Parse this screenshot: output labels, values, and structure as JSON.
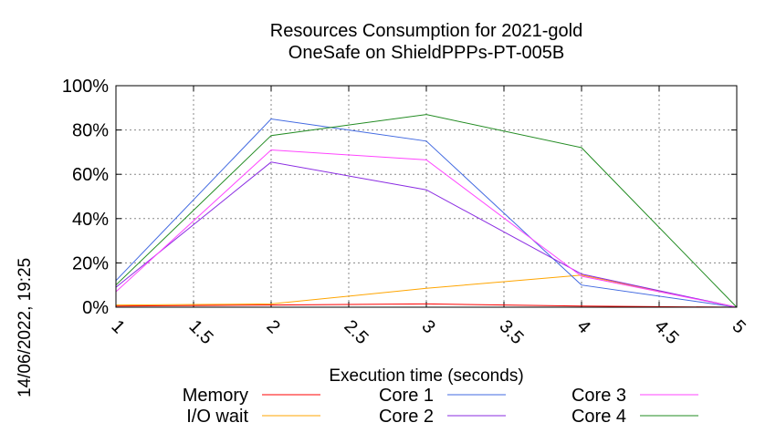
{
  "chart_data": {
    "type": "line",
    "title": [
      "Resources Consumption for 2021-gold",
      "OneSafe on ShieldPPPs-PT-005B"
    ],
    "xlabel": "Execution time (seconds)",
    "ylabel": "",
    "x_ticks": [
      "1",
      "1.5",
      "2",
      "2.5",
      "3",
      "3.5",
      "4",
      "4.5",
      "5"
    ],
    "y_ticks": [
      "0%",
      "20%",
      "40%",
      "60%",
      "80%",
      "100%"
    ],
    "xlim": [
      1,
      5
    ],
    "ylim": [
      0,
      100
    ],
    "grid": true,
    "legend_position": "bottom",
    "x": [
      1,
      2,
      3,
      4,
      5
    ],
    "series": [
      {
        "name": "Memory",
        "color": "#ff0000",
        "values": [
          0.5,
          1,
          1.5,
          0.5,
          0
        ]
      },
      {
        "name": "I/O wait",
        "color": "#ffa500",
        "values": [
          1,
          1.5,
          8.5,
          14.5,
          0
        ]
      },
      {
        "name": "Core 1",
        "color": "#4169e1",
        "values": [
          12,
          85,
          75,
          10,
          0
        ]
      },
      {
        "name": "Core 2",
        "color": "#8a2be2",
        "values": [
          9,
          65.5,
          53,
          15,
          0
        ]
      },
      {
        "name": "Core 3",
        "color": "#ff44ff",
        "values": [
          7,
          71,
          66.5,
          14,
          0
        ]
      },
      {
        "name": "Core 4",
        "color": "#228b22",
        "values": [
          10,
          77.5,
          87,
          72,
          0
        ]
      }
    ],
    "timestamp": "14/06/2022, 19:25"
  }
}
